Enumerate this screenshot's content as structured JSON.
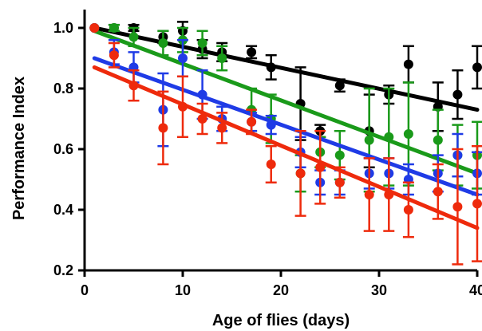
{
  "chart_data": {
    "type": "scatter",
    "title": "",
    "xlabel": "Age of flies (days)",
    "ylabel": "Performance Index",
    "xlim": [
      0,
      40
    ],
    "ylim": [
      0.2,
      1.0
    ],
    "x_ticks": [
      0,
      10,
      20,
      30,
      40
    ],
    "y_ticks": [
      0.2,
      0.4,
      0.6,
      0.8,
      1.0
    ],
    "x_tick_labels": [
      "0",
      "10",
      "20",
      "30",
      "40"
    ],
    "y_tick_labels": [
      "0.2",
      "0.4",
      "0.6",
      "0.8",
      "1.0"
    ],
    "grid": false,
    "legend": "none",
    "series": [
      {
        "color": "#000000",
        "points": [
          {
            "x": 1,
            "y": 1.0,
            "err": 0.0
          },
          {
            "x": 3,
            "y": 1.0,
            "err": 0.01
          },
          {
            "x": 5,
            "y": 1.0,
            "err": 0.01
          },
          {
            "x": 8,
            "y": 0.97,
            "err": 0.02
          },
          {
            "x": 10,
            "y": 0.99,
            "err": 0.03
          },
          {
            "x": 12,
            "y": 0.93,
            "err": 0.03
          },
          {
            "x": 14,
            "y": 0.92,
            "err": 0.03
          },
          {
            "x": 17,
            "y": 0.92,
            "err": 0.02
          },
          {
            "x": 19,
            "y": 0.87,
            "err": 0.04
          },
          {
            "x": 22,
            "y": 0.75,
            "err": 0.12
          },
          {
            "x": 24,
            "y": 0.66,
            "err": 0.02
          },
          {
            "x": 26,
            "y": 0.81,
            "err": 0.02
          },
          {
            "x": 29,
            "y": 0.66,
            "err": 0.12
          },
          {
            "x": 31,
            "y": 0.78,
            "err": 0.03
          },
          {
            "x": 33,
            "y": 0.88,
            "err": 0.06
          },
          {
            "x": 36,
            "y": 0.74,
            "err": 0.08
          },
          {
            "x": 38,
            "y": 0.78,
            "err": 0.08
          },
          {
            "x": 40,
            "y": 0.87,
            "err": 0.07
          }
        ],
        "fit": {
          "x0": 1,
          "y0": 1.0,
          "x1": 40,
          "y1": 0.73
        }
      },
      {
        "color": "#1a9a1a",
        "points": [
          {
            "x": 1,
            "y": 1.0,
            "err": 0.0
          },
          {
            "x": 3,
            "y": 1.0,
            "err": 0.01
          },
          {
            "x": 5,
            "y": 0.97,
            "err": 0.03
          },
          {
            "x": 8,
            "y": 0.95,
            "err": 0.04
          },
          {
            "x": 10,
            "y": 0.96,
            "err": 0.04
          },
          {
            "x": 12,
            "y": 0.95,
            "err": 0.04
          },
          {
            "x": 14,
            "y": 0.9,
            "err": 0.04
          },
          {
            "x": 17,
            "y": 0.73,
            "err": 0.07
          },
          {
            "x": 19,
            "y": 0.7,
            "err": 0.08
          },
          {
            "x": 22,
            "y": 0.52,
            "err": 0.06
          },
          {
            "x": 24,
            "y": 0.59,
            "err": 0.05
          },
          {
            "x": 26,
            "y": 0.58,
            "err": 0.08
          },
          {
            "x": 29,
            "y": 0.63,
            "err": 0.17
          },
          {
            "x": 31,
            "y": 0.64,
            "err": 0.16
          },
          {
            "x": 33,
            "y": 0.65,
            "err": 0.17
          },
          {
            "x": 36,
            "y": 0.63,
            "err": 0.1
          },
          {
            "x": 38,
            "y": 0.58,
            "err": 0.1
          },
          {
            "x": 40,
            "y": 0.58,
            "err": 0.11
          }
        ],
        "fit": {
          "x0": 1,
          "y0": 0.99,
          "x1": 40,
          "y1": 0.52
        }
      },
      {
        "color": "#1f3be6",
        "points": [
          {
            "x": 1,
            "y": 1.0,
            "err": 0.0
          },
          {
            "x": 3,
            "y": 0.92,
            "err": 0.04
          },
          {
            "x": 5,
            "y": 0.87,
            "err": 0.05
          },
          {
            "x": 8,
            "y": 0.73,
            "err": 0.12
          },
          {
            "x": 10,
            "y": 0.9,
            "err": 0.06
          },
          {
            "x": 12,
            "y": 0.78,
            "err": 0.08
          },
          {
            "x": 14,
            "y": 0.7,
            "err": 0.04
          },
          {
            "x": 17,
            "y": 0.69,
            "err": 0.03
          },
          {
            "x": 19,
            "y": 0.68,
            "err": 0.03
          },
          {
            "x": 22,
            "y": 0.59,
            "err": 0.05
          },
          {
            "x": 24,
            "y": 0.49,
            "err": 0.04
          },
          {
            "x": 26,
            "y": 0.49,
            "err": 0.04
          },
          {
            "x": 29,
            "y": 0.52,
            "err": 0.05
          },
          {
            "x": 31,
            "y": 0.52,
            "err": 0.05
          },
          {
            "x": 33,
            "y": 0.5,
            "err": 0.05
          },
          {
            "x": 36,
            "y": 0.52,
            "err": 0.06
          },
          {
            "x": 38,
            "y": 0.58,
            "err": 0.07
          },
          {
            "x": 40,
            "y": 0.52,
            "err": 0.07
          }
        ],
        "fit": {
          "x0": 1,
          "y0": 0.9,
          "x1": 40,
          "y1": 0.45
        }
      },
      {
        "color": "#ee2a0c",
        "points": [
          {
            "x": 1,
            "y": 1.0,
            "err": 0.0
          },
          {
            "x": 3,
            "y": 0.91,
            "err": 0.04
          },
          {
            "x": 5,
            "y": 0.81,
            "err": 0.05
          },
          {
            "x": 8,
            "y": 0.67,
            "err": 0.12
          },
          {
            "x": 10,
            "y": 0.74,
            "err": 0.1
          },
          {
            "x": 12,
            "y": 0.7,
            "err": 0.05
          },
          {
            "x": 14,
            "y": 0.67,
            "err": 0.05
          },
          {
            "x": 17,
            "y": 0.69,
            "err": 0.04
          },
          {
            "x": 19,
            "y": 0.55,
            "err": 0.06
          },
          {
            "x": 22,
            "y": 0.52,
            "err": 0.14
          },
          {
            "x": 24,
            "y": 0.54,
            "err": 0.12
          },
          {
            "x": 26,
            "y": 0.49,
            "err": 0.05
          },
          {
            "x": 29,
            "y": 0.45,
            "err": 0.12
          },
          {
            "x": 31,
            "y": 0.45,
            "err": 0.12
          },
          {
            "x": 33,
            "y": 0.4,
            "err": 0.09
          },
          {
            "x": 36,
            "y": 0.46,
            "err": 0.09
          },
          {
            "x": 38,
            "y": 0.41,
            "err": 0.19
          },
          {
            "x": 40,
            "y": 0.42,
            "err": 0.19
          }
        ],
        "fit": {
          "x0": 1,
          "y0": 0.87,
          "x1": 40,
          "y1": 0.34
        }
      }
    ]
  }
}
